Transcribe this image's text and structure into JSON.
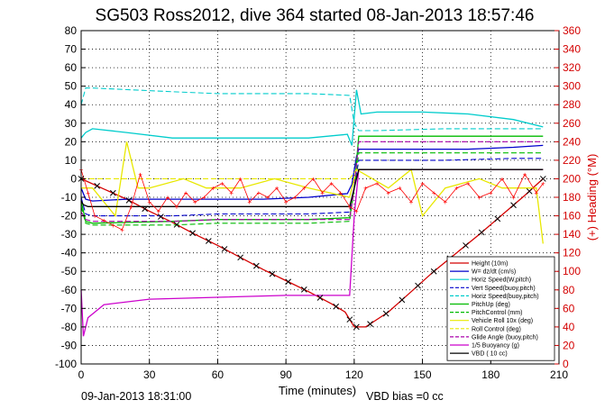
{
  "chart_data": {
    "type": "line",
    "title": "SG503 Ross2012, dive 364 started 08-Jan-2013 18:57:46",
    "xlabel": "Time (minutes)",
    "ylabel": "",
    "y2label": "(+) Heading (°M)",
    "xlim": [
      0,
      210
    ],
    "ylim": [
      -100,
      80
    ],
    "y2lim": [
      0,
      360
    ],
    "xticks": [
      0,
      30,
      60,
      90,
      120,
      150,
      180,
      210
    ],
    "yticks": [
      -100,
      -90,
      -80,
      -70,
      -60,
      -50,
      -40,
      -30,
      -20,
      -10,
      0,
      10,
      20,
      30,
      40,
      50,
      60,
      70,
      80
    ],
    "y2ticks": [
      0,
      20,
      40,
      60,
      80,
      100,
      120,
      140,
      160,
      180,
      200,
      220,
      240,
      260,
      280,
      300,
      320,
      340,
      360
    ],
    "grid": true,
    "legend_position": "bottom-right",
    "footer_left": "09-Jan-2013 18:31:00",
    "footer_right": "VBD bias =0 cc",
    "series": [
      {
        "name": "Height (10m)",
        "color": "#d40000",
        "style": "solid",
        "axis": "left",
        "x": [
          0,
          10,
          20,
          30,
          40,
          50,
          60,
          70,
          80,
          90,
          100,
          110,
          116,
          120,
          125,
          135,
          145,
          155,
          165,
          175,
          185,
          195,
          203
        ],
        "y": [
          0,
          -5.5,
          -11,
          -17.5,
          -23.5,
          -30,
          -36,
          -42.5,
          -49,
          -55,
          -61,
          -67.5,
          -72,
          -80,
          -80,
          -72,
          -61,
          -50,
          -40,
          -30,
          -19.5,
          -9,
          0
        ]
      },
      {
        "name": "W= dz/dt (cm/s)",
        "color": "#0000cc",
        "style": "solid",
        "axis": "left",
        "x": [
          0,
          2,
          5,
          20,
          40,
          60,
          80,
          100,
          117,
          119,
          121,
          122,
          130,
          150,
          170,
          190,
          203
        ],
        "y": [
          -5,
          -11,
          -12,
          -11,
          -11,
          -11,
          -11,
          -10,
          -8,
          -3,
          12,
          16,
          16,
          16,
          16,
          17,
          18
        ]
      },
      {
        "name": "Horiz Speed(W,pitch)",
        "color": "#00cccc",
        "style": "solid",
        "axis": "left",
        "x": [
          0,
          2,
          5,
          20,
          40,
          60,
          80,
          100,
          117,
          119,
          121,
          123,
          130,
          150,
          170,
          190,
          203
        ],
        "y": [
          22,
          25,
          27,
          25,
          22,
          22,
          22,
          22,
          24,
          18,
          48,
          35,
          36,
          36,
          35,
          32,
          28
        ]
      },
      {
        "name": "Vert Speed(buoy,pitch)",
        "color": "#0000cc",
        "style": "dashed",
        "axis": "left",
        "x": [
          0,
          2,
          5,
          40,
          60,
          80,
          100,
          118,
          120,
          122,
          130,
          160,
          190,
          203
        ],
        "y": [
          -10,
          -19,
          -20,
          -20,
          -19,
          -19,
          -19,
          -18,
          -5,
          10,
          10,
          10,
          11,
          11
        ]
      },
      {
        "name": "Horiz Speed(buoy,pitch)",
        "color": "#00cccc",
        "style": "dashed",
        "axis": "left",
        "x": [
          0,
          2,
          5,
          40,
          60,
          80,
          100,
          118,
          120,
          122,
          130,
          160,
          190,
          203
        ],
        "y": [
          40,
          49,
          49,
          47,
          46,
          46,
          46,
          45,
          30,
          26,
          26,
          27,
          27,
          27
        ]
      },
      {
        "name": "PitchUp (deg)",
        "color": "#00bb00",
        "style": "solid",
        "axis": "left",
        "x": [
          0,
          2,
          5,
          40,
          60,
          80,
          100,
          118,
          120,
          122,
          130,
          160,
          190,
          203
        ],
        "y": [
          -12,
          -23,
          -24,
          -23,
          -22,
          -22,
          -22,
          -21,
          -5,
          23,
          23,
          23,
          23,
          23
        ]
      },
      {
        "name": "PitchControl (mm)",
        "color": "#00bb00",
        "style": "dashed",
        "axis": "left",
        "x": [
          0,
          2,
          5,
          40,
          60,
          80,
          100,
          118,
          120,
          122,
          130,
          160,
          190,
          203
        ],
        "y": [
          -15,
          -24,
          -25,
          -25,
          -24,
          -24,
          -24,
          -23,
          -5,
          14,
          14,
          14,
          14,
          14
        ]
      },
      {
        "name": "Vehicle Roll 10x (deg)",
        "color": "#e8e800",
        "style": "solid",
        "axis": "left",
        "x": [
          0,
          5,
          15,
          20,
          25,
          30,
          45,
          55,
          70,
          85,
          100,
          118,
          121,
          135,
          145,
          150,
          160,
          175,
          185,
          200,
          203
        ],
        "y": [
          -5,
          -5,
          -20,
          20,
          -5,
          -5,
          0,
          -5,
          -5,
          0,
          -5,
          -10,
          5,
          -5,
          5,
          -20,
          -5,
          0,
          -5,
          -5,
          -35
        ]
      },
      {
        "name": "Roll Control (deg)",
        "color": "#e8e800",
        "style": "dashed",
        "axis": "left",
        "x": [
          0,
          5,
          40,
          80,
          118,
          121,
          160,
          203
        ],
        "y": [
          0,
          0,
          0,
          0,
          0,
          5,
          5,
          5
        ]
      },
      {
        "name": "Glide Angle (buoy,pitch)",
        "color": "#aa00aa",
        "style": "dashed",
        "axis": "left",
        "x": [
          0,
          2,
          5,
          40,
          60,
          80,
          100,
          118,
          120,
          122,
          130,
          160,
          190,
          203
        ],
        "y": [
          -18,
          -22,
          -23,
          -23,
          -22,
          -22,
          -22,
          -22,
          -5,
          20,
          20,
          20,
          20,
          20
        ]
      },
      {
        "name": "1/5 Buoyancy (g)",
        "color": "#cc00cc",
        "style": "solid",
        "axis": "left",
        "x": [
          0,
          1,
          3,
          10,
          30,
          60,
          90,
          110,
          116,
          118,
          120,
          122,
          140,
          170,
          203
        ],
        "y": [
          -60,
          -85,
          -75,
          -68,
          -65,
          -64,
          -63,
          -63,
          -63,
          -63,
          -20,
          5,
          5,
          5,
          5
        ]
      },
      {
        "name": "VBD ( 10 cc)",
        "color": "#000000",
        "style": "solid",
        "axis": "left",
        "x": [
          0,
          1,
          3,
          20,
          40,
          60,
          90,
          110,
          116,
          118,
          120,
          122,
          150,
          180,
          203
        ],
        "y": [
          -12,
          -14,
          -15,
          -15,
          -15,
          -15,
          -15,
          -15,
          -15,
          -15,
          -5,
          5,
          5,
          5,
          5
        ]
      },
      {
        "name": "Heading",
        "color": "#ff0000",
        "style": "markers",
        "axis": "right",
        "x": [
          0,
          3,
          6,
          10,
          14,
          18,
          22,
          26,
          30,
          34,
          38,
          42,
          46,
          50,
          54,
          58,
          62,
          66,
          70,
          74,
          78,
          82,
          86,
          90,
          94,
          98,
          102,
          106,
          110,
          114,
          118,
          121,
          125,
          130,
          135,
          140,
          145,
          150,
          155,
          160,
          165,
          170,
          175,
          180,
          185,
          190,
          195,
          200,
          203
        ],
        "y": [
          210,
          185,
          160,
          155,
          150,
          145,
          170,
          205,
          175,
          165,
          180,
          170,
          185,
          175,
          180,
          190,
          195,
          185,
          200,
          175,
          185,
          180,
          190,
          175,
          180,
          190,
          200,
          185,
          195,
          185,
          170,
          165,
          190,
          195,
          185,
          190,
          175,
          195,
          185,
          175,
          190,
          195,
          180,
          185,
          200,
          180,
          205,
          185,
          195
        ]
      }
    ],
    "depth_markers_x": [
      0,
      7,
      14,
      21,
      28,
      35,
      42,
      49,
      56,
      63,
      70,
      77,
      84,
      91,
      98,
      105,
      112,
      118,
      121,
      127,
      134,
      141,
      148,
      155,
      162,
      169,
      176,
      183,
      190,
      197,
      203
    ]
  }
}
